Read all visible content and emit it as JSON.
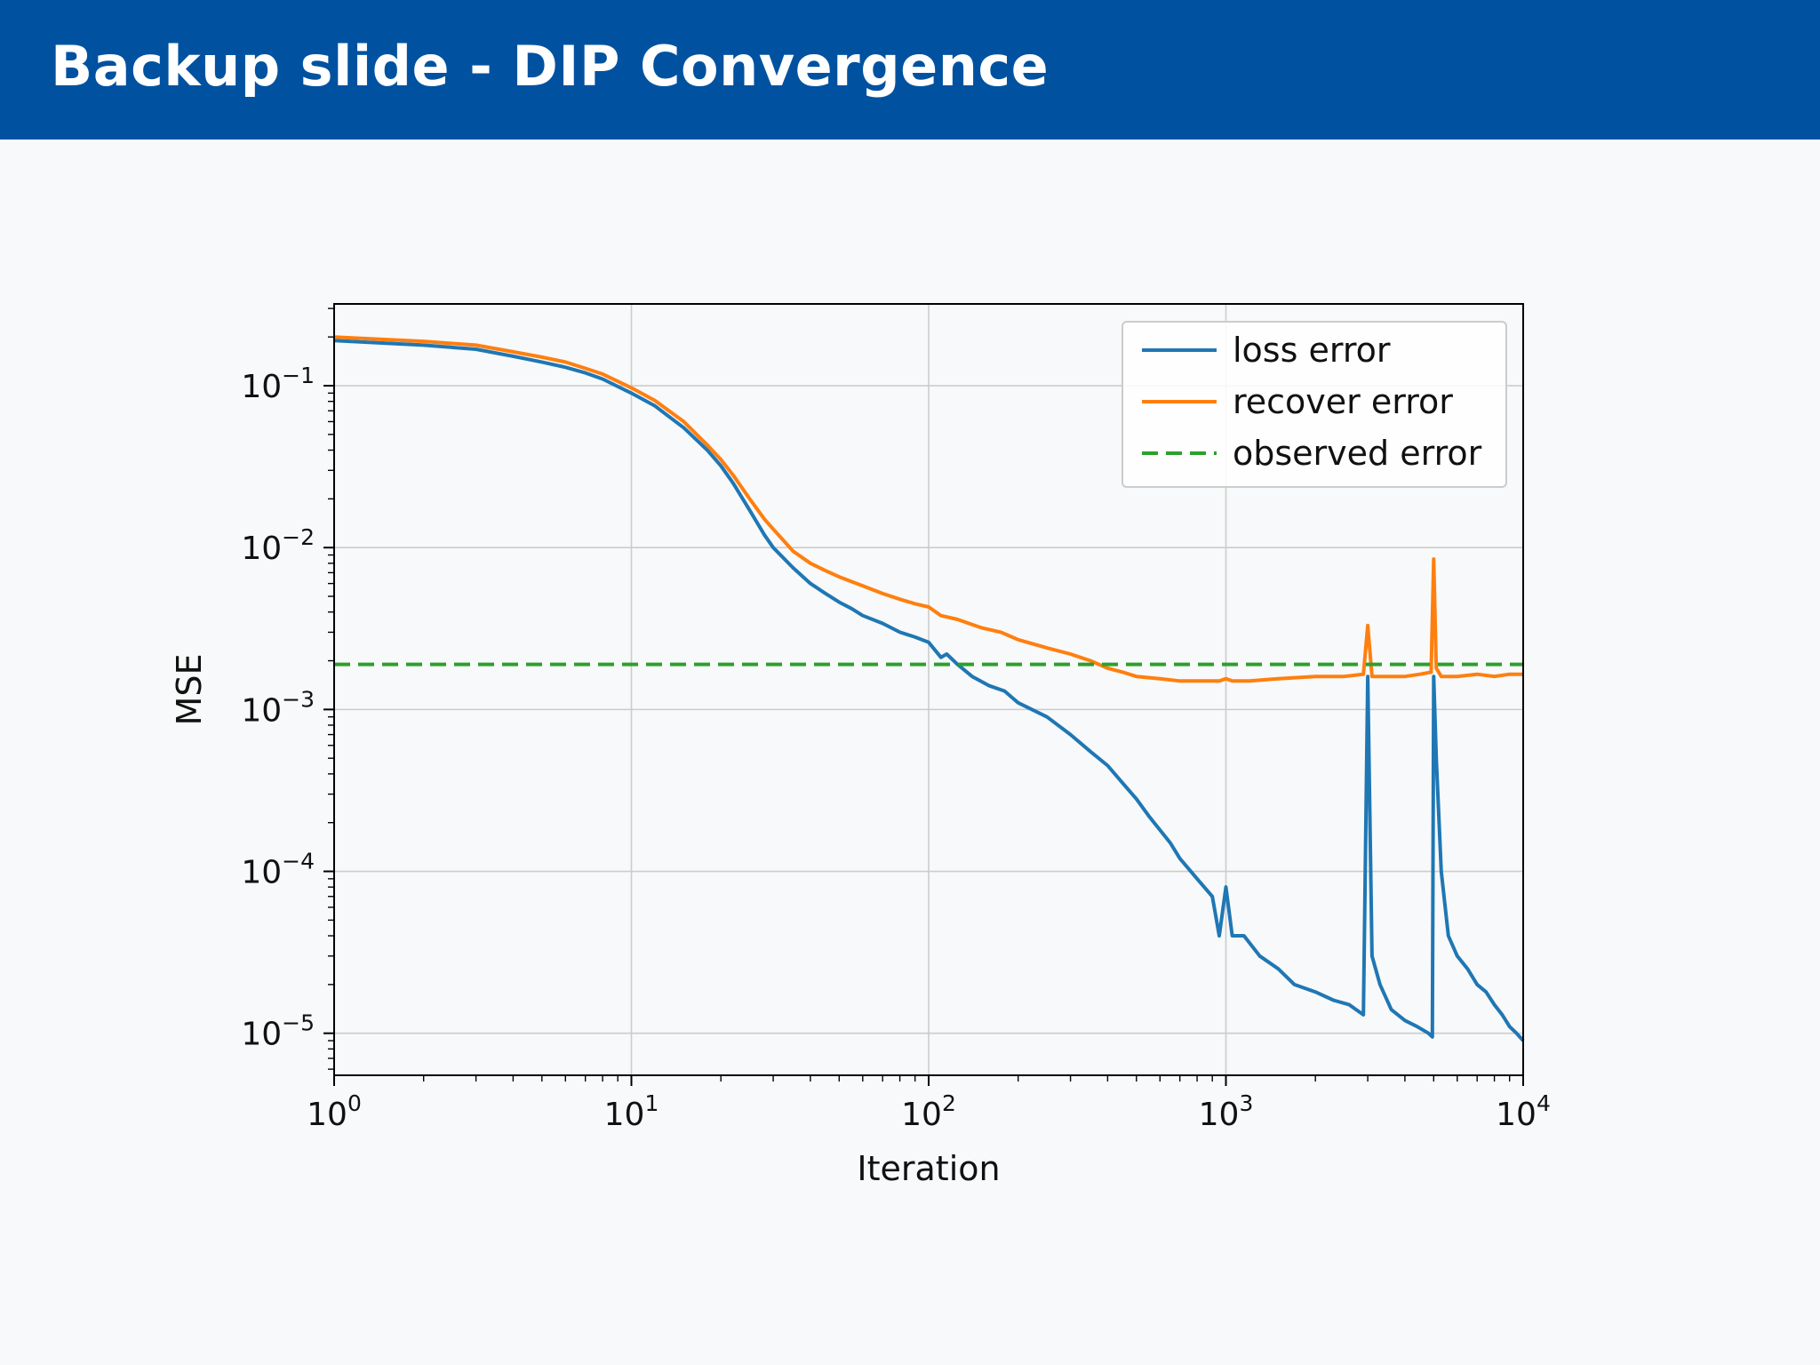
{
  "slide": {
    "title": "Backup slide - DIP Convergence"
  },
  "chart_data": {
    "type": "line",
    "xlabel": "Iteration",
    "ylabel": "MSE",
    "xscale": "log",
    "yscale": "log",
    "xlim": [
      1,
      10000
    ],
    "ylim": [
      5.5e-06,
      0.32
    ],
    "xticks": [
      {
        "base": "10",
        "exp": "0",
        "value": 1
      },
      {
        "base": "10",
        "exp": "1",
        "value": 10
      },
      {
        "base": "10",
        "exp": "2",
        "value": 100
      },
      {
        "base": "10",
        "exp": "3",
        "value": 1000
      },
      {
        "base": "10",
        "exp": "4",
        "value": 10000
      }
    ],
    "yticks": [
      {
        "base": "10",
        "exp": "−1",
        "value": 0.1
      },
      {
        "base": "10",
        "exp": "−2",
        "value": 0.01
      },
      {
        "base": "10",
        "exp": "−3",
        "value": 0.001
      },
      {
        "base": "10",
        "exp": "−4",
        "value": 0.0001
      },
      {
        "base": "10",
        "exp": "−5",
        "value": 1e-05
      }
    ],
    "grid": true,
    "legend_position": "top-right",
    "series": [
      {
        "name": "loss error",
        "color": "#1f77b4",
        "dash": "solid",
        "x": [
          1,
          2,
          3,
          4,
          5,
          6,
          7,
          8,
          10,
          12,
          15,
          18,
          20,
          22,
          25,
          28,
          30,
          35,
          40,
          45,
          50,
          55,
          60,
          70,
          80,
          90,
          100,
          110,
          115,
          125,
          140,
          160,
          180,
          200,
          250,
          300,
          350,
          400,
          450,
          500,
          550,
          600,
          650,
          700,
          800,
          900,
          950,
          1000,
          1050,
          1150,
          1300,
          1500,
          1700,
          2000,
          2300,
          2600,
          2900,
          3000,
          3100,
          3300,
          3600,
          4000,
          4400,
          4800,
          4950,
          5000,
          5100,
          5300,
          5600,
          6000,
          6500,
          7000,
          7500,
          8000,
          8500,
          9000,
          9500,
          10000
        ],
        "y": [
          0.19,
          0.178,
          0.168,
          0.152,
          0.14,
          0.13,
          0.12,
          0.11,
          0.09,
          0.075,
          0.055,
          0.04,
          0.032,
          0.025,
          0.017,
          0.012,
          0.01,
          0.0075,
          0.006,
          0.0052,
          0.0046,
          0.0042,
          0.0038,
          0.0034,
          0.003,
          0.0028,
          0.0026,
          0.0021,
          0.0022,
          0.0019,
          0.0016,
          0.0014,
          0.0013,
          0.0011,
          0.0009,
          0.0007,
          0.00055,
          0.00045,
          0.00035,
          0.00028,
          0.00022,
          0.00018,
          0.00015,
          0.00012,
          9e-05,
          7e-05,
          4e-05,
          8e-05,
          4e-05,
          4e-05,
          3e-05,
          2.5e-05,
          2e-05,
          1.8e-05,
          1.6e-05,
          1.5e-05,
          1.3e-05,
          0.0016,
          3e-05,
          2e-05,
          1.4e-05,
          1.2e-05,
          1.1e-05,
          1e-05,
          9.5e-06,
          0.0016,
          0.0005,
          0.0001,
          4e-05,
          3e-05,
          2.5e-05,
          2e-05,
          1.8e-05,
          1.5e-05,
          1.3e-05,
          1.1e-05,
          1e-05,
          9e-06
        ]
      },
      {
        "name": "recover error",
        "color": "#ff7f0e",
        "dash": "solid",
        "x": [
          1,
          2,
          3,
          4,
          5,
          6,
          7,
          8,
          10,
          12,
          15,
          18,
          20,
          22,
          25,
          28,
          30,
          35,
          40,
          45,
          50,
          60,
          70,
          80,
          90,
          100,
          110,
          125,
          150,
          175,
          200,
          250,
          300,
          350,
          400,
          450,
          500,
          600,
          700,
          800,
          900,
          950,
          1000,
          1050,
          1200,
          1500,
          2000,
          2500,
          2900,
          3000,
          3100,
          3500,
          4000,
          4500,
          4900,
          5000,
          5100,
          5300,
          6000,
          7000,
          8000,
          9000,
          10000
        ],
        "y": [
          0.2,
          0.188,
          0.178,
          0.162,
          0.15,
          0.14,
          0.128,
          0.118,
          0.097,
          0.081,
          0.06,
          0.043,
          0.035,
          0.028,
          0.02,
          0.015,
          0.013,
          0.0095,
          0.008,
          0.0072,
          0.0066,
          0.0058,
          0.0052,
          0.0048,
          0.0045,
          0.0043,
          0.0038,
          0.0036,
          0.0032,
          0.003,
          0.0027,
          0.0024,
          0.0022,
          0.002,
          0.0018,
          0.0017,
          0.0016,
          0.00155,
          0.0015,
          0.0015,
          0.0015,
          0.0015,
          0.00155,
          0.0015,
          0.0015,
          0.00155,
          0.0016,
          0.0016,
          0.00165,
          0.0033,
          0.0016,
          0.0016,
          0.0016,
          0.00165,
          0.0017,
          0.0085,
          0.0018,
          0.0016,
          0.0016,
          0.00165,
          0.0016,
          0.00165,
          0.00165
        ]
      },
      {
        "name": "observed error",
        "color": "#2ca02c",
        "dash": "dashed",
        "x": [
          1,
          10000
        ],
        "y": [
          0.0019,
          0.0019
        ]
      }
    ]
  }
}
